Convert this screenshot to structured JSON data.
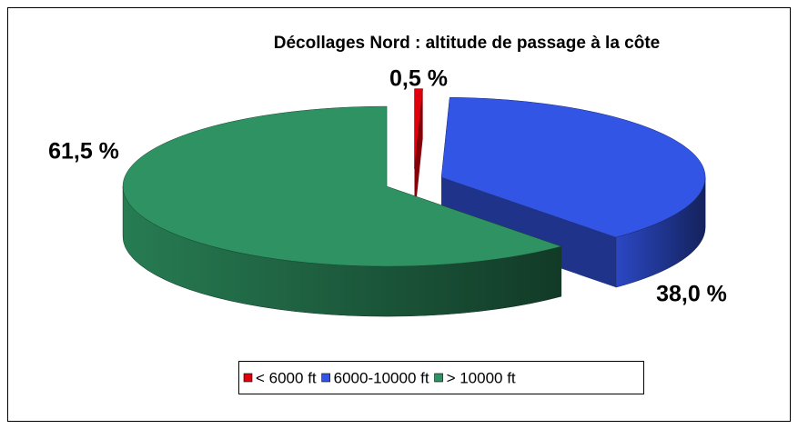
{
  "chart_data": {
    "type": "pie",
    "title": "Décollages Nord : altitude de passage  à la côte",
    "categories": [
      "< 6000 ft",
      "6000-10000 ft",
      "> 10000 ft"
    ],
    "values": [
      0.5,
      38.0,
      61.5
    ],
    "value_labels": [
      "0,5 %",
      "38,0 %",
      "61,5 %"
    ],
    "colors": [
      "#e0000d",
      "#3355e6",
      "#2e9262"
    ],
    "legend": "bottom"
  }
}
